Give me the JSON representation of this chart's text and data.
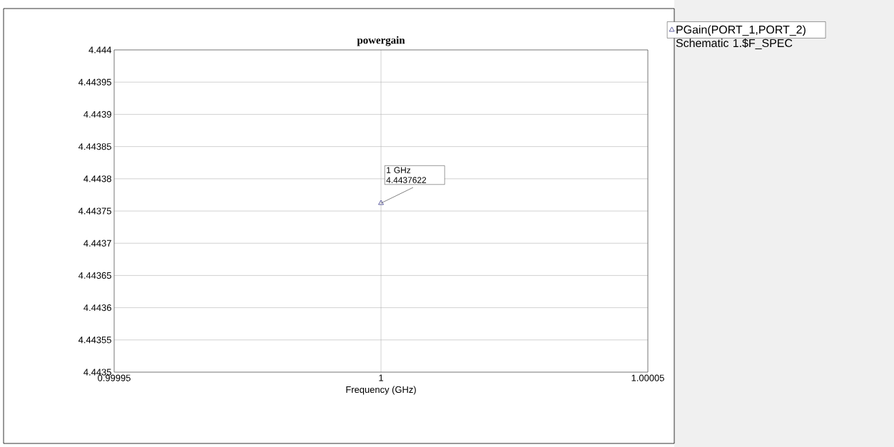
{
  "chart_data": {
    "type": "scatter",
    "title": "powergain",
    "xlabel": "Frequency (GHz)",
    "x": [
      1
    ],
    "series": [
      {
        "name": "PGain(PORT_1,PORT_2) Schematic 1.$F_SPEC",
        "color": "#1f1f7a",
        "values": [
          4.4437622
        ]
      }
    ],
    "xlim": [
      0.99995,
      1.00005
    ],
    "xticks": [
      0.99995,
      1,
      1.00005
    ],
    "ylim": [
      4.4435,
      4.444
    ],
    "yticks": [
      4.4435,
      4.44355,
      4.4436,
      4.44365,
      4.4437,
      4.44375,
      4.4438,
      4.44385,
      4.4439,
      4.44395,
      4.444
    ],
    "annotations": [
      {
        "text": "1 GHz 4.4437622",
        "x": 1,
        "y": 4.4437622
      }
    ],
    "grid": true,
    "legend": "top right",
    "marker": "triangle"
  }
}
